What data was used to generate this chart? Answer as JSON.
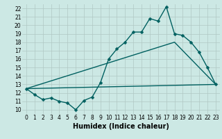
{
  "xlabel": "Humidex (Indice chaleur)",
  "xlim": [
    -0.5,
    23.5
  ],
  "ylim": [
    9.5,
    22.5
  ],
  "xticks": [
    0,
    1,
    2,
    3,
    4,
    5,
    6,
    7,
    8,
    9,
    10,
    11,
    12,
    13,
    14,
    15,
    16,
    17,
    18,
    19,
    20,
    21,
    22,
    23
  ],
  "yticks": [
    10,
    11,
    12,
    13,
    14,
    15,
    16,
    17,
    18,
    19,
    20,
    21,
    22
  ],
  "bg_color": "#cce8e4",
  "grid_color": "#b0c8c4",
  "line_color": "#006060",
  "line1_x": [
    0,
    1,
    2,
    3,
    4,
    5,
    6,
    7,
    8,
    9,
    10,
    11,
    12,
    13,
    14,
    15,
    16,
    17,
    18,
    19,
    20,
    21,
    22,
    23
  ],
  "line1_y": [
    12.5,
    11.8,
    11.2,
    11.4,
    11.0,
    10.8,
    10.0,
    11.1,
    11.5,
    13.2,
    16.0,
    17.2,
    18.0,
    19.2,
    19.2,
    20.8,
    20.5,
    22.2,
    19.0,
    18.8,
    18.0,
    16.8,
    15.0,
    13.0
  ],
  "line2_x": [
    0,
    23
  ],
  "line2_y": [
    12.5,
    13.0
  ],
  "line3_x": [
    0,
    18,
    23
  ],
  "line3_y": [
    12.5,
    18.0,
    13.0
  ],
  "marker_size": 2.5,
  "line_width": 1.0,
  "tick_fontsize": 5.5,
  "xlabel_fontsize": 7
}
